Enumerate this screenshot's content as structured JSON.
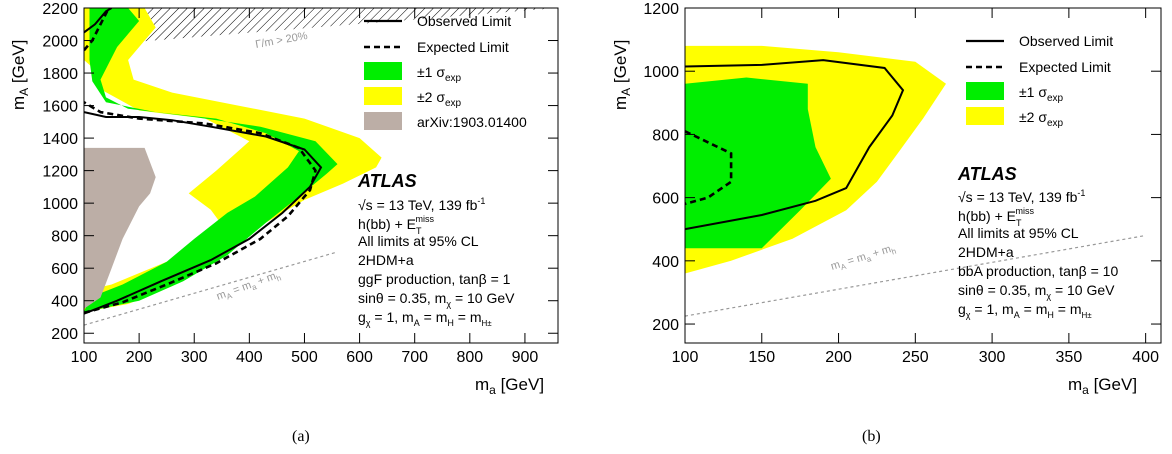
{
  "panels": [
    {
      "caption": "(a)",
      "legend": [
        {
          "label": "Observed Limit",
          "kind": "line",
          "dash": "none",
          "color": "#000000"
        },
        {
          "label": "Expected Limit",
          "kind": "line",
          "dash": "dashed",
          "color": "#000000"
        },
        {
          "label": "±1 σ",
          "sub": "exp",
          "kind": "box",
          "color": "#00ee00"
        },
        {
          "label": "±2 σ",
          "sub": "exp",
          "kind": "box",
          "color": "#ffff00"
        },
        {
          "label": "arXiv:1903.01400",
          "kind": "box",
          "color": "#bcaea6"
        }
      ],
      "atlas_label": "ATLAS",
      "info_lines": [
        {
          "text": "√s = 13 TeV, 139 fb",
          "sup": "-1"
        },
        {
          "text": "h(bb) + E",
          "sub": "T",
          "sup": "miss"
        },
        {
          "text": "All limits at 95% CL"
        },
        {
          "text": "2HDM+a"
        },
        {
          "text": "ggF production, tanβ = 1"
        },
        {
          "text": "sinθ = 0.35, m",
          "sub": "χ",
          "after": " = 10 GeV"
        },
        {
          "text": "g",
          "sub": "χ",
          "after": " = 1, m",
          "sub2": "A",
          "after2": " = m",
          "sub3": "H",
          "after3": " = m",
          "sub4": "H±"
        }
      ],
      "gray_annotations": [
        "Γ/m > 20%",
        "m",
        "A",
        " = m",
        "a",
        " + m",
        "h"
      ]
    },
    {
      "caption": "(b)",
      "legend": [
        {
          "label": "Observed Limit",
          "kind": "line",
          "dash": "none",
          "color": "#000000"
        },
        {
          "label": "Expected Limit",
          "kind": "line",
          "dash": "dashed",
          "color": "#000000"
        },
        {
          "label": "±1 σ",
          "sub": "exp",
          "kind": "box",
          "color": "#00ee00"
        },
        {
          "label": "±2 σ",
          "sub": "exp",
          "kind": "box",
          "color": "#ffff00"
        }
      ],
      "atlas_label": "ATLAS",
      "info_lines": [
        {
          "text": "√s = 13 TeV, 139 fb",
          "sup": "-1"
        },
        {
          "text": "h(bb) + E",
          "sub": "T",
          "sup": "miss"
        },
        {
          "text": "All limits at 95% CL"
        },
        {
          "text": "2HDM+a"
        },
        {
          "text": "bbA production, tanβ = 10"
        },
        {
          "text": "sinθ = 0.35, m",
          "sub": "χ",
          "after": " = 10 GeV"
        },
        {
          "text": "g",
          "sub": "χ",
          "after": " = 1, m",
          "sub2": "A",
          "after2": " = m",
          "sub3": "H",
          "after3": " = m",
          "sub4": "H±"
        }
      ],
      "gray_annotations": [
        "m",
        "A",
        " = m",
        "a",
        " + m",
        "h"
      ]
    }
  ],
  "chart_data": [
    {
      "type": "contour",
      "xlabel": "m",
      "xlabel_sub": "a",
      "xlabel_unit": " [GeV]",
      "ylabel": "m",
      "ylabel_sub": "A",
      "ylabel_unit": " [GeV]",
      "xlim": [
        100,
        960
      ],
      "ylim": [
        140,
        2200
      ],
      "xticks": [
        100,
        200,
        300,
        400,
        500,
        600,
        700,
        800,
        900
      ],
      "yticks": [
        200,
        400,
        600,
        800,
        1000,
        1200,
        1400,
        1600,
        1800,
        2000,
        2200
      ],
      "band2_sigma": [
        [
          100,
          330
        ],
        [
          180,
          380
        ],
        [
          260,
          490
        ],
        [
          340,
          650
        ],
        [
          420,
          860
        ],
        [
          500,
          1020
        ],
        [
          570,
          1120
        ],
        [
          630,
          1220
        ],
        [
          640,
          1280
        ],
        [
          600,
          1400
        ],
        [
          500,
          1520
        ],
        [
          380,
          1600
        ],
        [
          260,
          1680
        ],
        [
          190,
          1760
        ],
        [
          180,
          1880
        ],
        [
          230,
          2080
        ],
        [
          210,
          2200
        ],
        [
          100,
          2200
        ],
        [
          100,
          1880
        ],
        [
          120,
          1820
        ],
        [
          130,
          1700
        ],
        [
          200,
          1570
        ],
        [
          320,
          1520
        ],
        [
          400,
          1380
        ],
        [
          340,
          1200
        ],
        [
          290,
          1060
        ],
        [
          330,
          960
        ],
        [
          360,
          820
        ],
        [
          250,
          640
        ],
        [
          150,
          500
        ],
        [
          100,
          460
        ]
      ],
      "band1_sigma": [
        [
          100,
          330
        ],
        [
          200,
          400
        ],
        [
          280,
          520
        ],
        [
          360,
          680
        ],
        [
          430,
          880
        ],
        [
          490,
          1040
        ],
        [
          540,
          1180
        ],
        [
          560,
          1240
        ],
        [
          520,
          1380
        ],
        [
          420,
          1470
        ],
        [
          300,
          1530
        ],
        [
          180,
          1580
        ],
        [
          140,
          1650
        ],
        [
          130,
          1760
        ],
        [
          160,
          1960
        ],
        [
          200,
          2120
        ],
        [
          180,
          2200
        ],
        [
          110,
          2200
        ],
        [
          110,
          1880
        ],
        [
          115,
          1750
        ],
        [
          140,
          1620
        ],
        [
          230,
          1560
        ],
        [
          340,
          1520
        ],
        [
          430,
          1430
        ],
        [
          490,
          1320
        ],
        [
          470,
          1220
        ],
        [
          410,
          1040
        ],
        [
          360,
          940
        ],
        [
          300,
          780
        ],
        [
          250,
          640
        ],
        [
          170,
          500
        ],
        [
          110,
          420
        ]
      ],
      "observed": [
        [
          100,
          320
        ],
        [
          160,
          400
        ],
        [
          240,
          520
        ],
        [
          330,
          650
        ],
        [
          400,
          780
        ],
        [
          460,
          940
        ],
        [
          510,
          1100
        ],
        [
          530,
          1220
        ],
        [
          500,
          1330
        ],
        [
          430,
          1410
        ],
        [
          330,
          1470
        ],
        [
          260,
          1510
        ],
        [
          200,
          1530
        ],
        [
          140,
          1530
        ],
        [
          100,
          1560
        ]
      ],
      "expected": [
        [
          100,
          325
        ],
        [
          170,
          390
        ],
        [
          250,
          500
        ],
        [
          340,
          630
        ],
        [
          420,
          780
        ],
        [
          470,
          920
        ],
        [
          510,
          1080
        ],
        [
          520,
          1200
        ],
        [
          490,
          1340
        ],
        [
          420,
          1430
        ],
        [
          320,
          1490
        ],
        [
          200,
          1520
        ],
        [
          130,
          1560
        ],
        [
          100,
          1620
        ]
      ],
      "observed_upper": [
        [
          100,
          2050
        ],
        [
          120,
          2100
        ],
        [
          140,
          2180
        ],
        [
          150,
          2200
        ]
      ],
      "expected_upper": [
        [
          100,
          1940
        ],
        [
          115,
          2000
        ],
        [
          130,
          2100
        ],
        [
          145,
          2200
        ]
      ],
      "excluded_previous": [
        [
          100,
          1340
        ],
        [
          210,
          1340
        ],
        [
          230,
          1160
        ],
        [
          220,
          1060
        ],
        [
          200,
          980
        ],
        [
          170,
          780
        ],
        [
          150,
          600
        ],
        [
          130,
          420
        ],
        [
          100,
          350
        ]
      ],
      "width_hatch": [
        [
          150,
          1980
        ],
        [
          960,
          2200
        ],
        [
          150,
          2200
        ]
      ],
      "kinematic_line": [
        [
          100,
          250
        ],
        [
          560,
          700
        ]
      ]
    },
    {
      "type": "contour",
      "xlabel": "m",
      "xlabel_sub": "a",
      "xlabel_unit": " [GeV]",
      "ylabel": "m",
      "ylabel_sub": "A",
      "ylabel_unit": " [GeV]",
      "xlim": [
        100,
        410
      ],
      "ylim": [
        140,
        1200
      ],
      "xticks": [
        100,
        150,
        200,
        250,
        300,
        350,
        400
      ],
      "yticks": [
        200,
        400,
        600,
        800,
        1000,
        1200
      ],
      "band2_sigma": [
        [
          100,
          360
        ],
        [
          130,
          400
        ],
        [
          170,
          470
        ],
        [
          205,
          560
        ],
        [
          225,
          650
        ],
        [
          240,
          750
        ],
        [
          255,
          850
        ],
        [
          270,
          960
        ],
        [
          250,
          1030
        ],
        [
          200,
          1060
        ],
        [
          150,
          1080
        ],
        [
          100,
          1080
        ]
      ],
      "band1_sigma": [
        [
          100,
          440
        ],
        [
          150,
          440
        ],
        [
          175,
          560
        ],
        [
          195,
          660
        ],
        [
          185,
          760
        ],
        [
          180,
          880
        ],
        [
          180,
          960
        ],
        [
          140,
          980
        ],
        [
          100,
          960
        ]
      ],
      "observed": [
        [
          100,
          500
        ],
        [
          150,
          545
        ],
        [
          185,
          590
        ],
        [
          205,
          630
        ],
        [
          220,
          760
        ],
        [
          235,
          860
        ],
        [
          242,
          940
        ],
        [
          230,
          1010
        ],
        [
          190,
          1035
        ],
        [
          150,
          1020
        ],
        [
          100,
          1015
        ]
      ],
      "expected": [
        [
          100,
          810
        ],
        [
          130,
          740
        ],
        [
          130,
          650
        ],
        [
          115,
          600
        ],
        [
          100,
          580
        ]
      ],
      "kinematic_line": [
        [
          100,
          225
        ],
        [
          400,
          480
        ]
      ]
    }
  ]
}
